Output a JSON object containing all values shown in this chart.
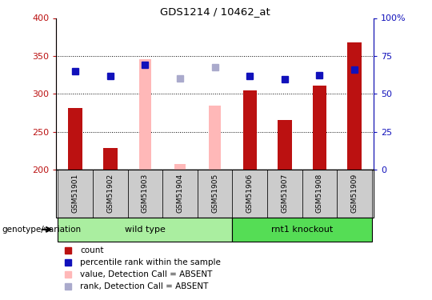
{
  "title": "GDS1214 / 10462_at",
  "samples": [
    "GSM51901",
    "GSM51902",
    "GSM51903",
    "GSM51904",
    "GSM51905",
    "GSM51906",
    "GSM51907",
    "GSM51908",
    "GSM51909"
  ],
  "red_bars": [
    281,
    228,
    null,
    null,
    null,
    304,
    265,
    311,
    368
  ],
  "pink_bars": [
    null,
    null,
    346,
    207,
    284,
    null,
    null,
    null,
    null
  ],
  "blue_squares_left": [
    330,
    323,
    338,
    null,
    null,
    323,
    319,
    325,
    332
  ],
  "lavender_squares_left": [
    null,
    null,
    null,
    320,
    335,
    null,
    null,
    null,
    null
  ],
  "ylim_left": [
    200,
    400
  ],
  "ylim_right": [
    0,
    100
  ],
  "yticks_left": [
    200,
    250,
    300,
    350,
    400
  ],
  "yticks_right": [
    0,
    25,
    50,
    75,
    100
  ],
  "grid_lines": [
    250,
    300,
    350
  ],
  "bar_width": 0.4,
  "red_color": "#BB1111",
  "pink_color": "#FFB8B8",
  "blue_color": "#1111BB",
  "lavender_color": "#AAAACC",
  "wild_type_label": "wild type",
  "knockout_label": "rnt1 knockout",
  "genotype_label": "genotype/variation",
  "legend_items": [
    "count",
    "percentile rank within the sample",
    "value, Detection Call = ABSENT",
    "rank, Detection Call = ABSENT"
  ],
  "sample_bg_color": "#CCCCCC",
  "wild_type_bg": "#AAEEA0",
  "knockout_bg": "#55DD55",
  "plot_bg": "#FFFFFF"
}
